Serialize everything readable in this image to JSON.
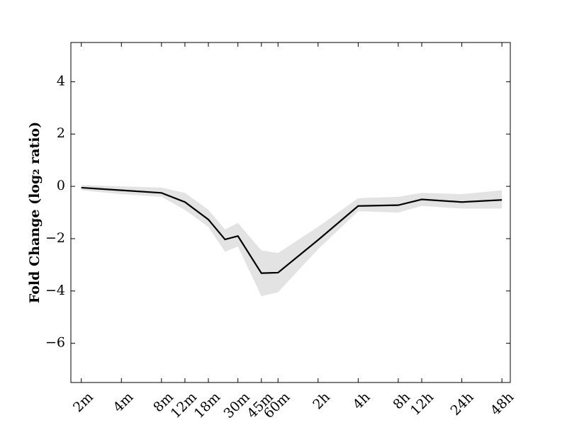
{
  "chart_data": {
    "type": "line",
    "y_label": "Fold Change (log₂ ratio)",
    "x": [
      2,
      4,
      8,
      12,
      18,
      24,
      30,
      45,
      60,
      120,
      240,
      480,
      720,
      1440,
      2880
    ],
    "log_x": 2,
    "xlim": [
      1.67,
      3330
    ],
    "xticks": [
      {
        "value": 2,
        "label": "2m"
      },
      {
        "value": 4,
        "label": "4m"
      },
      {
        "value": 8,
        "label": "8m"
      },
      {
        "value": 12,
        "label": "12m"
      },
      {
        "value": 18,
        "label": "18m"
      },
      {
        "value": 30,
        "label": "30m"
      },
      {
        "value": 45,
        "label": "45m"
      },
      {
        "value": 60,
        "label": "60m"
      },
      {
        "value": 120,
        "label": "2h"
      },
      {
        "value": 240,
        "label": "4h"
      },
      {
        "value": 480,
        "label": "8h"
      },
      {
        "value": 720,
        "label": "12h"
      },
      {
        "value": 1440,
        "label": "24h"
      },
      {
        "value": 2880,
        "label": "48h"
      }
    ],
    "ylim": [
      -7.5,
      5.5
    ],
    "yticks": [
      {
        "value": -6,
        "label": "−6"
      },
      {
        "value": -4,
        "label": "−4"
      },
      {
        "value": -2,
        "label": "−2"
      },
      0,
      2,
      4
    ],
    "series": [
      {
        "color": "#000000",
        "values": [
          -0.05,
          -0.15,
          -0.25,
          -0.6,
          -1.27,
          -2.03,
          -1.9,
          -3.32,
          -3.3,
          -2.05,
          -0.75,
          -0.72,
          -0.5,
          -0.6,
          -0.52
        ]
      }
    ],
    "band": {
      "color": "#e3e3e3",
      "lower": [
        -0.15,
        -0.3,
        -0.4,
        -0.9,
        -1.55,
        -2.5,
        -2.3,
        -4.2,
        -4.05,
        -2.4,
        -0.95,
        -1.0,
        -0.75,
        -0.85,
        -0.85
      ],
      "upper": [
        0.05,
        0.0,
        -0.05,
        -0.25,
        -0.9,
        -1.65,
        -1.4,
        -2.45,
        -2.55,
        -1.55,
        -0.45,
        -0.4,
        -0.25,
        -0.3,
        -0.15
      ]
    }
  }
}
